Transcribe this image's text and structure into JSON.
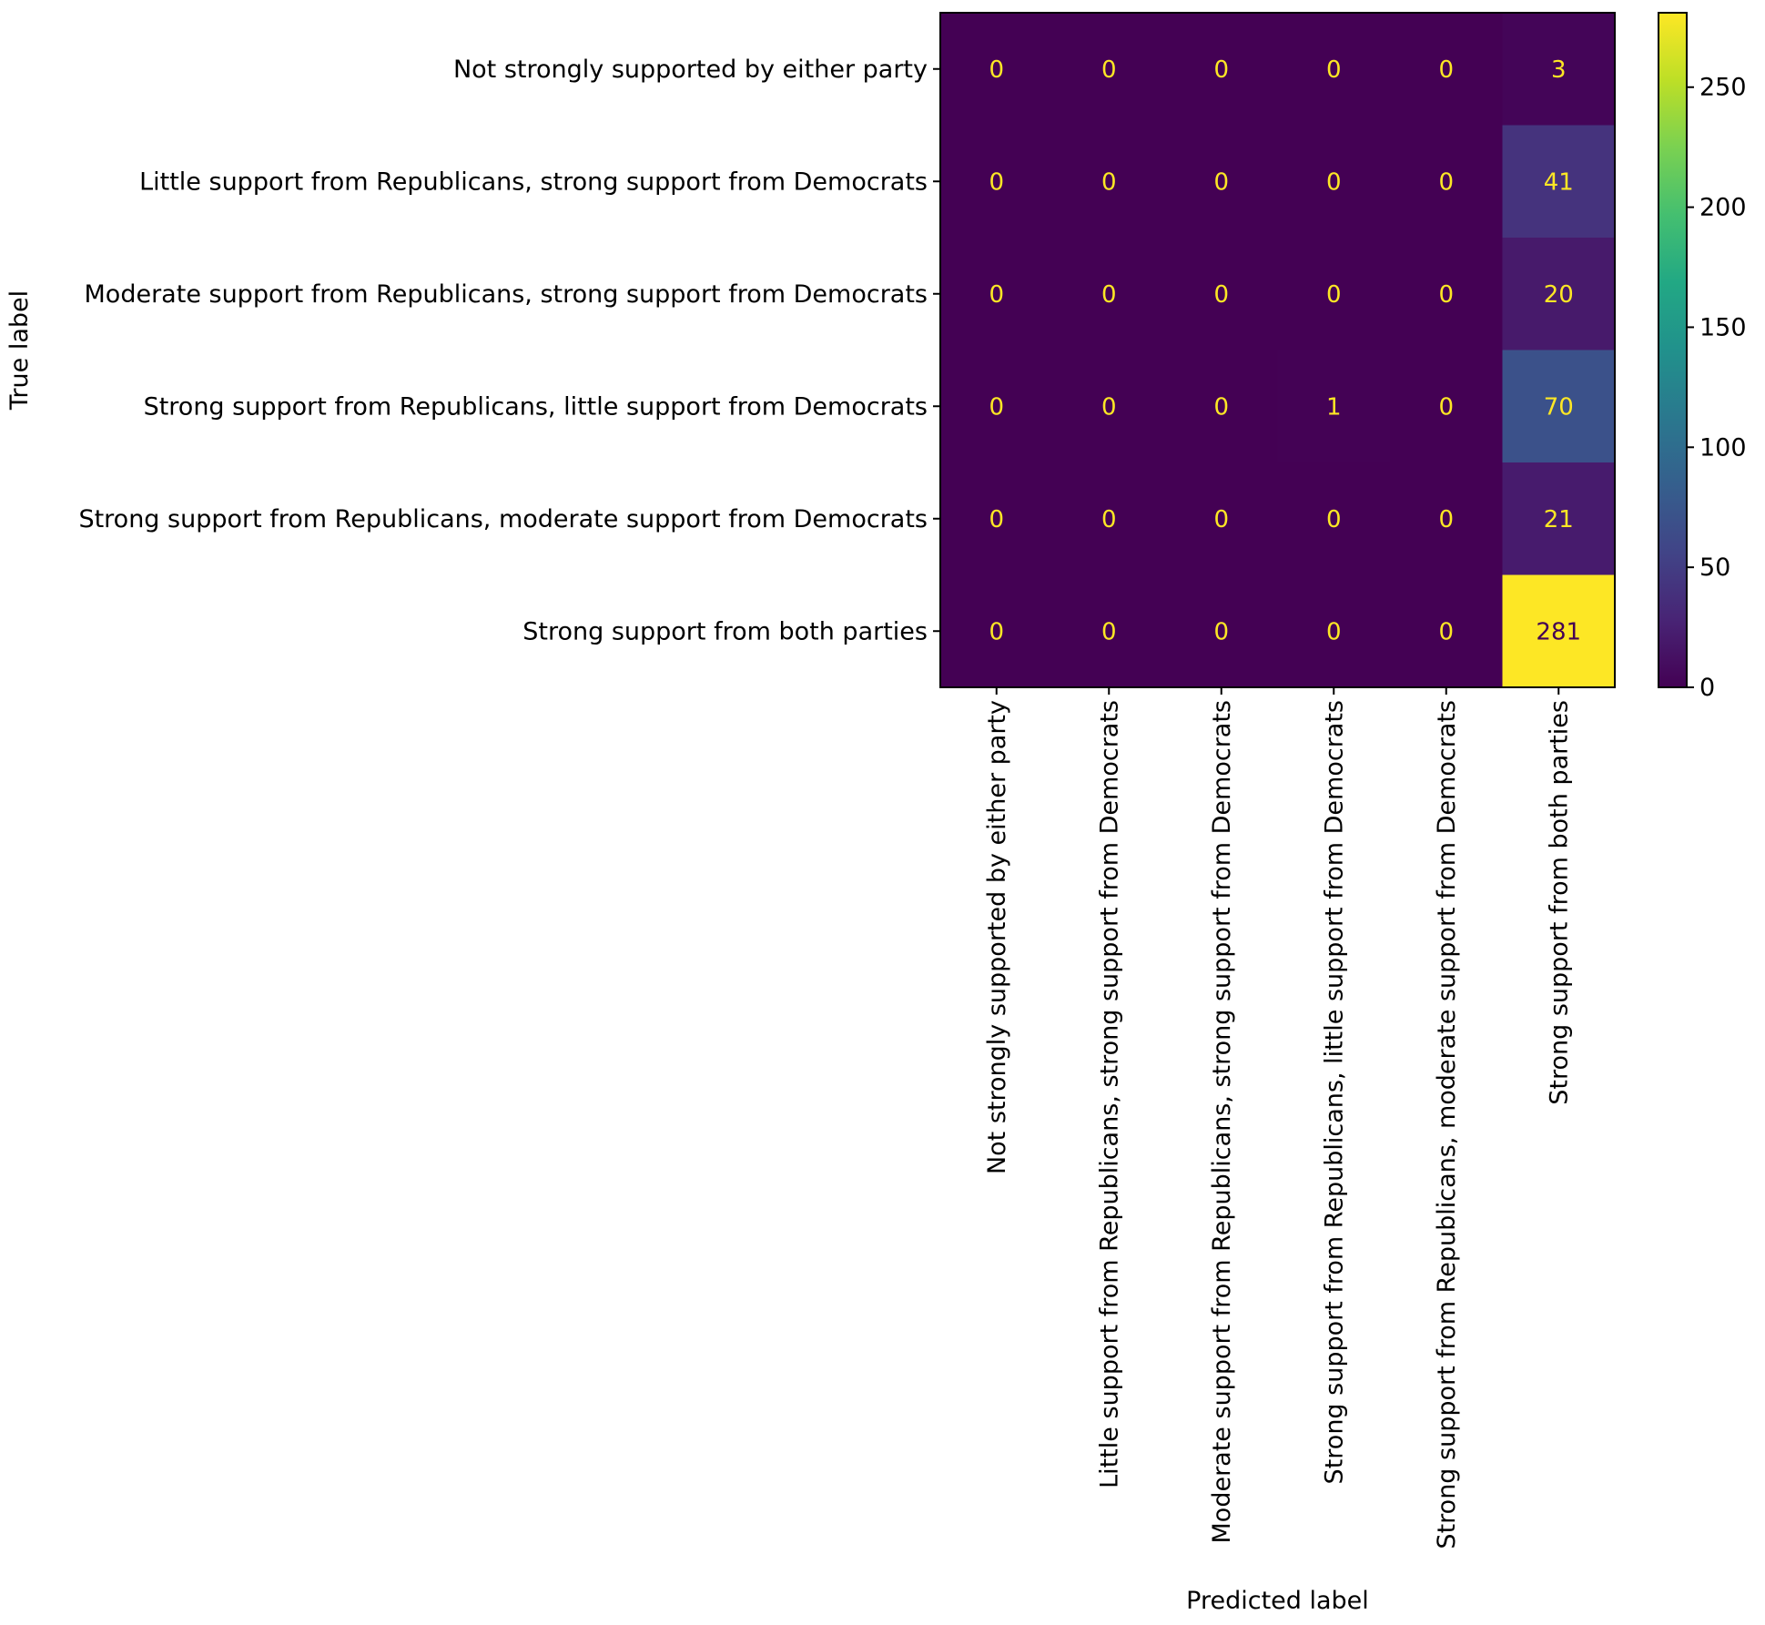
{
  "chart_data": {
    "type": "heatmap",
    "title": "",
    "xlabel": "Predicted label",
    "ylabel": "True label",
    "x_categories": [
      "Not strongly supported by either party",
      "Little support from Republicans, strong support from Democrats",
      "Moderate support from Republicans, strong support from Democrats",
      "Strong support from Republicans, little support from Democrats",
      "Strong support from Republicans, moderate support from Democrats",
      "Strong support from both parties"
    ],
    "y_categories": [
      "Not strongly supported by either party",
      "Little support from Republicans, strong support from Democrats",
      "Moderate support from Republicans, strong support from Democrats",
      "Strong support from Republicans, little support from Democrats",
      "Strong support from Republicans, moderate support from Democrats",
      "Strong support from both parties"
    ],
    "values": [
      [
        0,
        0,
        0,
        0,
        0,
        3
      ],
      [
        0,
        0,
        0,
        0,
        0,
        41
      ],
      [
        0,
        0,
        0,
        0,
        0,
        20
      ],
      [
        0,
        0,
        0,
        1,
        0,
        70
      ],
      [
        0,
        0,
        0,
        0,
        0,
        21
      ],
      [
        0,
        0,
        0,
        0,
        0,
        281
      ]
    ],
    "colormap": "viridis",
    "color_range": [
      0,
      281
    ],
    "colorbar_ticks": [
      0,
      50,
      100,
      150,
      200,
      250
    ],
    "grid": false
  }
}
